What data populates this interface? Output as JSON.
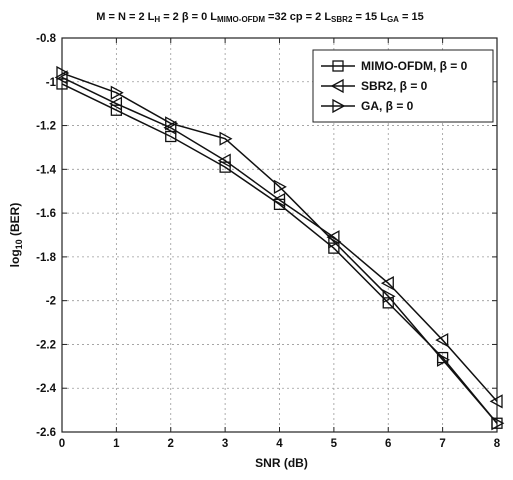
{
  "chart_data": {
    "type": "line",
    "title_parts": [
      {
        "text": "M = N = 2  L"
      },
      {
        "text": "H",
        "sub": true
      },
      {
        "text": " = 2  β = 0  L"
      },
      {
        "text": "MIMO-OFDM",
        "sub": true
      },
      {
        "text": " =32  cp = 2  L"
      },
      {
        "text": "SBR2",
        "sub": true
      },
      {
        "text": " = 15  L"
      },
      {
        "text": "GA",
        "sub": true
      },
      {
        "text": " = 15"
      }
    ],
    "xlabel": "SNR (dB)",
    "ylabel_parts": [
      {
        "text": "log"
      },
      {
        "text": "10",
        "sub": true
      },
      {
        "text": " (BER)"
      }
    ],
    "xlim": [
      0,
      8
    ],
    "ylim": [
      -2.6,
      -0.8
    ],
    "xticks": [
      "0",
      "1",
      "2",
      "3",
      "4",
      "5",
      "6",
      "7",
      "8"
    ],
    "yticks": [
      "-0.8",
      "-1",
      "-1.2",
      "-1.4",
      "-1.6",
      "-1.8",
      "-2",
      "-2.2",
      "-2.4",
      "-2.6"
    ],
    "grid": true,
    "legend_position": "top-right",
    "x": [
      0,
      1,
      2,
      3,
      4,
      5,
      6,
      7,
      8
    ],
    "series": [
      {
        "name": "MIMO-OFDM, β = 0",
        "marker": "square",
        "values": [
          -1.01,
          -1.13,
          -1.25,
          -1.39,
          -1.56,
          -1.76,
          -2.01,
          -2.26,
          -2.56
        ]
      },
      {
        "name": "SBR2, β = 0",
        "marker": "triangle-left",
        "values": [
          -0.98,
          -1.1,
          -1.21,
          -1.36,
          -1.54,
          -1.71,
          -1.92,
          -2.18,
          -2.46
        ]
      },
      {
        "name": "GA, β = 0",
        "marker": "triangle-right",
        "values": [
          -0.96,
          -1.05,
          -1.19,
          -1.26,
          -1.48,
          -1.73,
          -1.98,
          -2.27,
          -2.56
        ]
      }
    ]
  }
}
